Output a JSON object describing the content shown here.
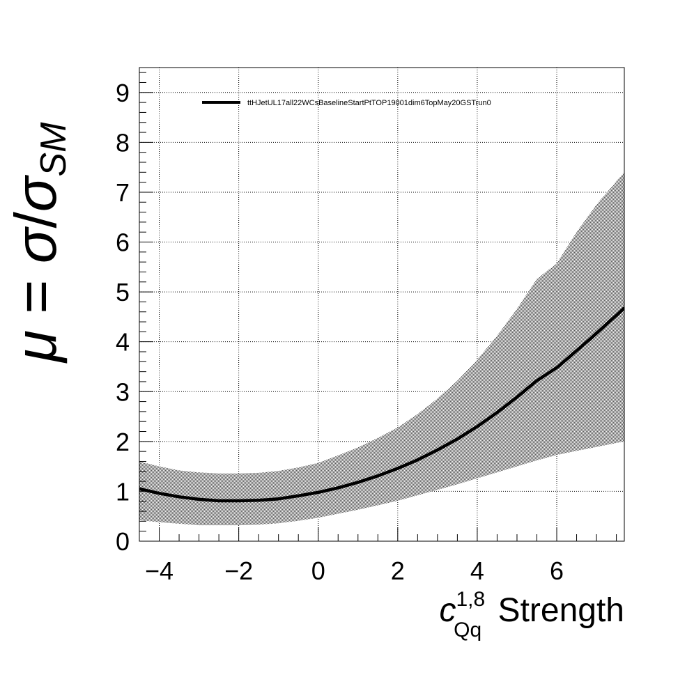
{
  "chart_data": {
    "type": "line",
    "title": "",
    "xlim": [
      -4.5,
      7.7
    ],
    "ylim": [
      0,
      9.5
    ],
    "x_ticks": [
      -4,
      -2,
      0,
      2,
      4,
      6
    ],
    "x_tick_labels": [
      "−4",
      "−2",
      "0",
      "2",
      "4",
      "6"
    ],
    "y_ticks": [
      0,
      1,
      2,
      3,
      4,
      5,
      6,
      7,
      8,
      9
    ],
    "y_tick_labels": [
      "0",
      "1",
      "2",
      "3",
      "4",
      "5",
      "6",
      "7",
      "8",
      "9"
    ],
    "xlabel": {
      "symbol": "c",
      "superscript": "1,8",
      "subscript": "Qq",
      "text": "Strength"
    },
    "ylabel": {
      "mu": "μ",
      "equals": " = ",
      "sigma": "σ",
      "slash": "/",
      "sigma_sm": "σ",
      "subscript": "SM"
    },
    "grid": true,
    "legend_position": "top",
    "series": [
      {
        "name": "ttHJetUL17all22WCsBaselineStartPtTOP19001dim6TopMay20GSTrun0",
        "x": [
          -4.5,
          -4,
          -3.5,
          -3,
          -2.5,
          -2,
          -1.5,
          -1,
          -0.5,
          0,
          0.5,
          1,
          1.5,
          2,
          2.5,
          3,
          3.5,
          4,
          4.5,
          5,
          5.5,
          6,
          6.5,
          7,
          7.5,
          7.7
        ],
        "y": [
          1.05,
          0.96,
          0.89,
          0.84,
          0.81,
          0.81,
          0.82,
          0.85,
          0.91,
          0.98,
          1.07,
          1.18,
          1.31,
          1.46,
          1.63,
          1.83,
          2.05,
          2.3,
          2.58,
          2.89,
          3.22,
          3.48,
          3.82,
          4.17,
          4.53,
          4.68
        ],
        "band_upper": [
          1.6,
          1.5,
          1.42,
          1.38,
          1.36,
          1.36,
          1.37,
          1.41,
          1.48,
          1.57,
          1.72,
          1.88,
          2.07,
          2.28,
          2.55,
          2.86,
          3.22,
          3.64,
          4.12,
          4.66,
          5.26,
          5.57,
          6.2,
          6.75,
          7.22,
          7.4
        ],
        "band_lower": [
          0.42,
          0.38,
          0.35,
          0.32,
          0.32,
          0.32,
          0.33,
          0.36,
          0.41,
          0.47,
          0.55,
          0.63,
          0.72,
          0.81,
          0.92,
          1.03,
          1.14,
          1.26,
          1.38,
          1.5,
          1.62,
          1.73,
          1.81,
          1.89,
          1.97,
          2.0
        ],
        "line_color": "#000000",
        "band_color": "#bbbbbb"
      }
    ]
  }
}
